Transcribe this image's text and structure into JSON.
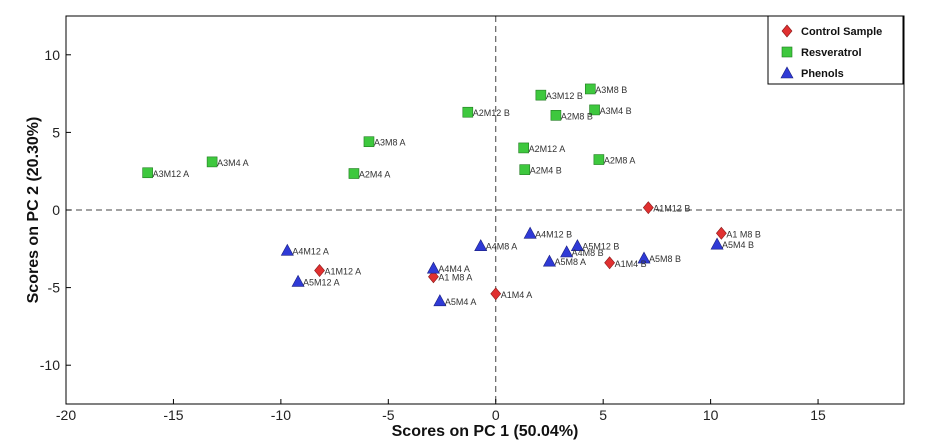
{
  "chart_data": {
    "type": "scatter",
    "xlabel": "Scores on PC 1 (50.04%)",
    "ylabel": "Scores on PC 2 (20.30%)",
    "xlim": [
      -20,
      19
    ],
    "ylim": [
      -12.5,
      12.5
    ],
    "xticks": [
      -20,
      -15,
      -10,
      -5,
      0,
      5,
      10,
      15
    ],
    "yticks": [
      -10,
      -5,
      0,
      5,
      10
    ],
    "reference_lines": {
      "x": 0,
      "y": 0,
      "style": "dashed"
    },
    "legend_position": "top-right",
    "series": [
      {
        "name": "Control Sample",
        "marker": "diamond",
        "color": "#e03030",
        "points": [
          {
            "x": 7.1,
            "y": 0.15,
            "label": "A1M12 B"
          },
          {
            "x": 10.5,
            "y": -1.5,
            "label": "A1 M8 B"
          },
          {
            "x": 5.3,
            "y": -3.4,
            "label": "A1M4 B"
          },
          {
            "x": -8.2,
            "y": -3.9,
            "label": "A1M12 A"
          },
          {
            "x": -2.9,
            "y": -4.3,
            "label": "A1 M8 A"
          },
          {
            "x": 0.0,
            "y": -5.4,
            "label": "A1M4 A"
          }
        ]
      },
      {
        "name": "Resveratrol",
        "marker": "square",
        "color": "#3ec83e",
        "points": [
          {
            "x": -16.2,
            "y": 2.4,
            "label": "A3M12 A"
          },
          {
            "x": -13.2,
            "y": 3.1,
            "label": "A3M4 A"
          },
          {
            "x": -6.6,
            "y": 2.35,
            "label": "A2M4 A"
          },
          {
            "x": -5.9,
            "y": 4.4,
            "label": "A3M8 A"
          },
          {
            "x": -1.3,
            "y": 6.3,
            "label": "A2M12 B"
          },
          {
            "x": 1.3,
            "y": 4.0,
            "label": "A2M12 A"
          },
          {
            "x": 1.35,
            "y": 2.6,
            "label": "A2M4 B"
          },
          {
            "x": 2.1,
            "y": 7.4,
            "label": "A3M12 B"
          },
          {
            "x": 2.8,
            "y": 6.1,
            "label": "A2M8 B"
          },
          {
            "x": 4.4,
            "y": 7.8,
            "label": "A3M8 B"
          },
          {
            "x": 4.6,
            "y": 6.45,
            "label": "A3M4 B"
          },
          {
            "x": 4.8,
            "y": 3.25,
            "label": "A2M8 A"
          }
        ]
      },
      {
        "name": "Phenols",
        "marker": "triangle",
        "color": "#2f3ad6",
        "points": [
          {
            "x": -9.7,
            "y": -2.6,
            "label": "A4M12 A"
          },
          {
            "x": -9.2,
            "y": -4.6,
            "label": "A5M12 A"
          },
          {
            "x": -2.9,
            "y": -3.75,
            "label": "A4M4 A"
          },
          {
            "x": -2.6,
            "y": -5.85,
            "label": "A5M4 A"
          },
          {
            "x": -0.7,
            "y": -2.3,
            "label": "A4M8 A"
          },
          {
            "x": 1.6,
            "y": -1.5,
            "label": "A4M12 B"
          },
          {
            "x": 2.5,
            "y": -3.3,
            "label": "A5M8 A"
          },
          {
            "x": 3.3,
            "y": -2.7,
            "label": "A4M8 B"
          },
          {
            "x": 3.8,
            "y": -2.3,
            "label": "A5M12 B"
          },
          {
            "x": 6.9,
            "y": -3.1,
            "label": "A5M8 B"
          },
          {
            "x": 10.3,
            "y": -2.2,
            "label": "A5M4 B"
          }
        ]
      }
    ]
  }
}
